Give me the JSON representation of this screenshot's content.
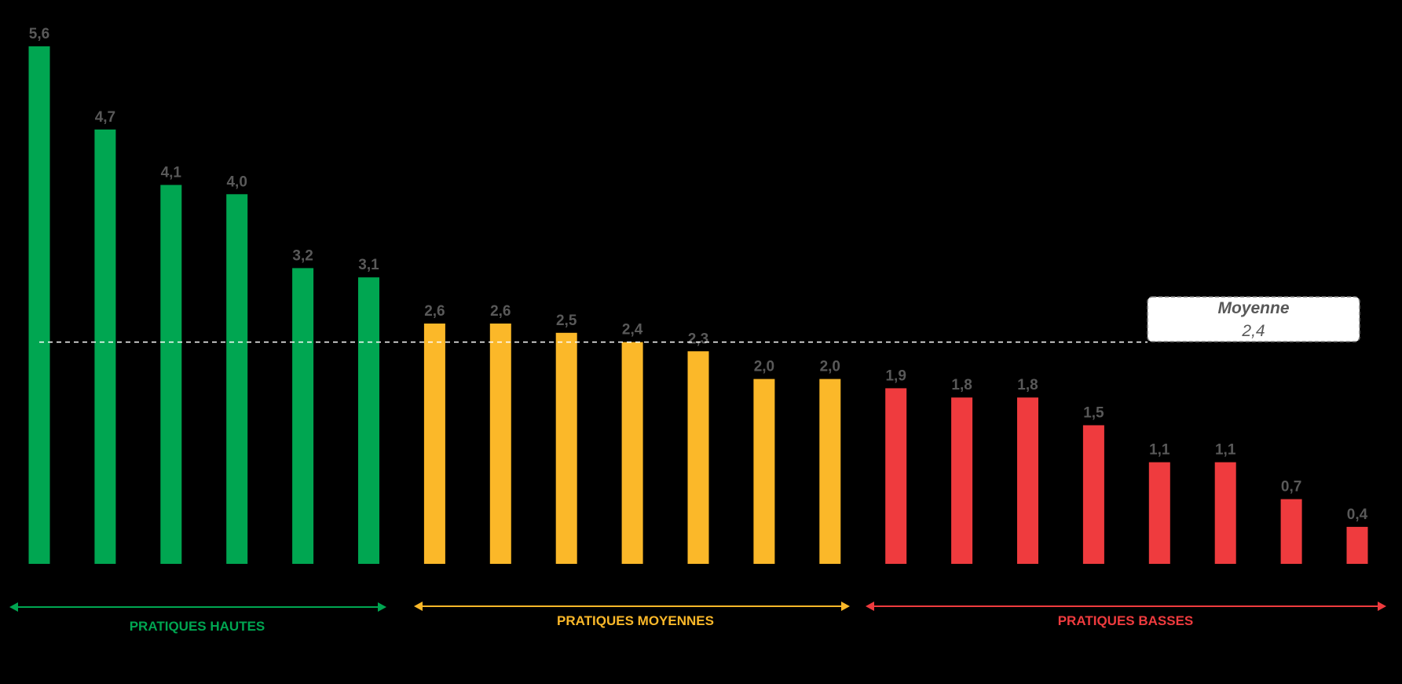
{
  "chart_data": {
    "type": "bar",
    "values": [
      5.6,
      4.7,
      4.1,
      4.0,
      3.2,
      3.1,
      2.6,
      2.6,
      2.5,
      2.4,
      2.3,
      2.0,
      2.0,
      1.9,
      1.8,
      1.8,
      1.5,
      1.1,
      1.1,
      0.7,
      0.4
    ],
    "value_labels": [
      "5,6",
      "4,7",
      "4,1",
      "4,0",
      "3,2",
      "3,1",
      "2,6",
      "2,6",
      "2,5",
      "2,4",
      "2,3",
      "2,0",
      "2,0",
      "1,9",
      "1,8",
      "1,8",
      "1,5",
      "1,1",
      "1,1",
      "0,7",
      "0,4"
    ],
    "group_of_bar": [
      0,
      0,
      0,
      0,
      0,
      0,
      1,
      1,
      1,
      1,
      1,
      1,
      1,
      2,
      2,
      2,
      2,
      2,
      2,
      2,
      2
    ],
    "groups": [
      {
        "label": "PRATIQUES HAUTES",
        "color": "#00A651"
      },
      {
        "label": "PRATIQUES MOYENNES",
        "color": "#FBB829"
      },
      {
        "label": "PRATIQUES BASSES",
        "color": "#EF3B3E"
      }
    ],
    "average": {
      "title": "Moyenne",
      "value": 2.4,
      "label": "2,4"
    },
    "ylim": [
      0,
      5.6
    ],
    "title": "",
    "xlabel": "",
    "ylabel": "",
    "grid": false,
    "legend": "none"
  }
}
